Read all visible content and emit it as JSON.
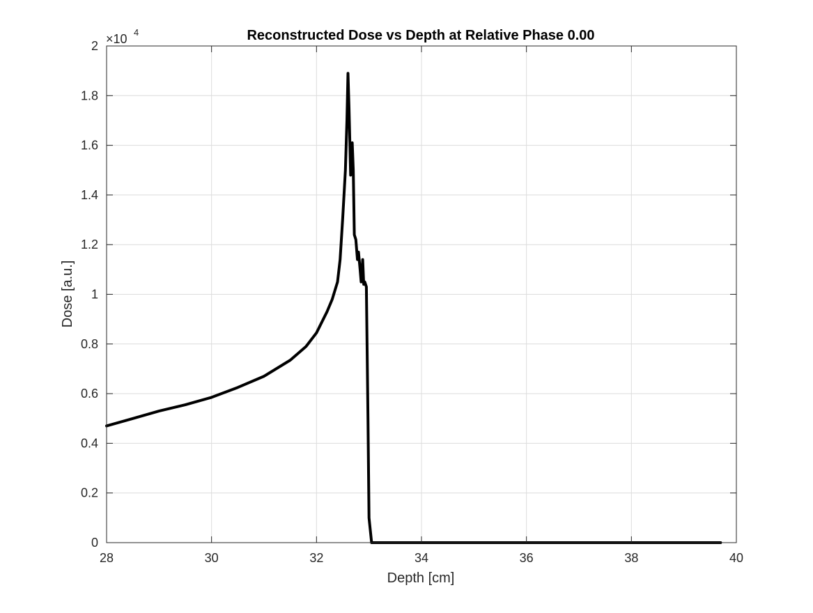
{
  "chart_data": {
    "type": "line",
    "title": "Reconstructed Dose vs Depth at Relative Phase 0.00",
    "xlabel": "Depth [cm]",
    "ylabel": "Dose [a.u.]",
    "xlim": [
      28,
      40
    ],
    "ylim": [
      0,
      2
    ],
    "y_multiplier_base": "×10",
    "y_multiplier_exponent": "4",
    "xticks": [
      28,
      30,
      32,
      34,
      36,
      38,
      40
    ],
    "xtick_labels": [
      "28",
      "30",
      "32",
      "34",
      "36",
      "38",
      "40"
    ],
    "yticks": [
      0,
      0.2,
      0.4,
      0.6,
      0.8,
      1.0,
      1.2,
      1.4,
      1.6,
      1.8,
      2.0
    ],
    "ytick_labels": [
      "0",
      "0.2",
      "0.4",
      "0.6",
      "0.8",
      "1",
      "1.2",
      "1.4",
      "1.6",
      "1.8",
      "2"
    ],
    "grid": true,
    "colors": {
      "line": "#000000",
      "grid": "#dcdcdc",
      "axes": "#262626"
    },
    "series": [
      {
        "x": [
          28.0,
          28.5,
          29.0,
          29.5,
          30.0,
          30.5,
          31.0,
          31.5,
          31.8,
          32.0,
          32.2,
          32.3,
          32.4,
          32.45,
          32.5,
          32.55,
          32.58,
          32.6,
          32.62,
          32.65,
          32.68,
          32.7,
          32.72,
          32.75,
          32.78,
          32.8,
          32.83,
          32.85,
          32.88,
          32.9,
          32.92,
          32.95,
          32.98,
          33.0,
          33.05,
          33.1,
          33.5,
          34.0,
          35.0,
          36.0,
          37.0,
          38.0,
          39.0,
          39.7
        ],
        "y": [
          0.47,
          0.5,
          0.53,
          0.555,
          0.585,
          0.625,
          0.67,
          0.735,
          0.79,
          0.845,
          0.93,
          0.98,
          1.05,
          1.14,
          1.31,
          1.5,
          1.7,
          1.89,
          1.75,
          1.48,
          1.61,
          1.5,
          1.24,
          1.22,
          1.14,
          1.17,
          1.1,
          1.05,
          1.14,
          1.04,
          1.05,
          1.03,
          0.5,
          0.1,
          0.0,
          0.0,
          0.0,
          0.0,
          0.0,
          0.0,
          0.0,
          0.0,
          0.0,
          0.0
        ]
      }
    ]
  }
}
